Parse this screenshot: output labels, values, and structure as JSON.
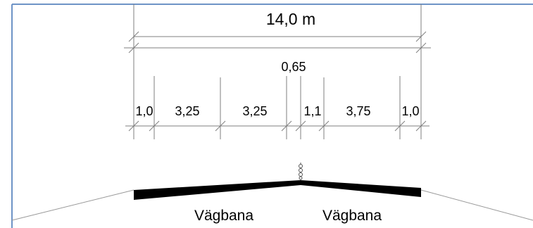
{
  "colors": {
    "frame": "#6e93c6",
    "dimension_line": "#7f7f7f",
    "road_surface": "#000000",
    "ground": "#999999",
    "text": "#000000"
  },
  "icons": {
    "center_barrier": "barrier-post-icon"
  },
  "dimensions": {
    "total_width": "14,0 m",
    "outer_width": "0,65",
    "segments": [
      "1,0",
      "3,25",
      "3,25",
      "1,1",
      "3,75",
      "1,0"
    ]
  },
  "carriageways": [
    "Vägbana",
    "Vägbana"
  ]
}
